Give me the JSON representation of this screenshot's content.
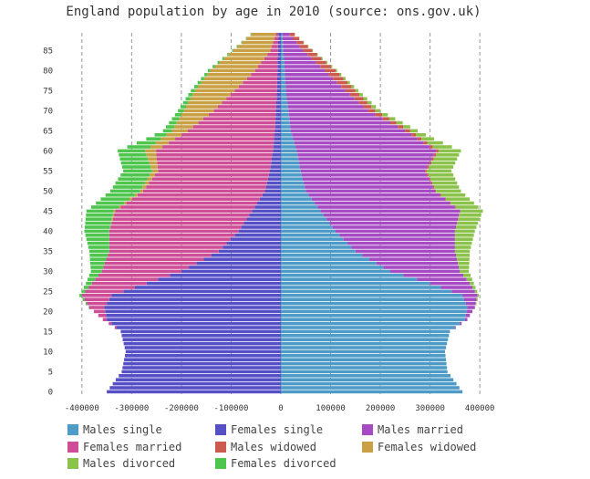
{
  "chart_data": {
    "type": "bar",
    "orientation": "horizontal",
    "stacked": true,
    "title": "England population by age in 2010 (source: ons.gov.uk)",
    "xlim": [
      -440000,
      440000
    ],
    "ylim": [
      0,
      90
    ],
    "x_ticks": [
      -400000,
      -300000,
      -200000,
      -100000,
      0,
      100000,
      200000,
      300000,
      400000
    ],
    "x_tick_labels": [
      "-400000",
      "-300000",
      "-200000",
      "-100000",
      "0",
      "100000",
      "200000",
      "300000",
      "400000"
    ],
    "y_ticks": [
      0,
      5,
      10,
      15,
      20,
      25,
      30,
      35,
      40,
      45,
      50,
      55,
      60,
      65,
      70,
      75,
      80,
      85
    ],
    "y_tick_labels": [
      "0",
      "5",
      "10",
      "15",
      "20",
      "25",
      "30",
      "35",
      "40",
      "45",
      "50",
      "55",
      "60",
      "65",
      "70",
      "75",
      "80",
      "85"
    ],
    "grid_x": true,
    "grid_y": false,
    "legend_position": "bottom",
    "series": [
      {
        "name": "Males single",
        "side": "right",
        "color": "#4e9bc7",
        "anchors": [
          [
            0,
            365000
          ],
          [
            5,
            335000
          ],
          [
            10,
            330000
          ],
          [
            15,
            340000
          ],
          [
            18,
            370000
          ],
          [
            21,
            375000
          ],
          [
            24,
            365000
          ],
          [
            27,
            300000
          ],
          [
            30,
            220000
          ],
          [
            35,
            150000
          ],
          [
            40,
            110000
          ],
          [
            45,
            80000
          ],
          [
            50,
            50000
          ],
          [
            55,
            40000
          ],
          [
            60,
            32000
          ],
          [
            65,
            20000
          ],
          [
            70,
            15000
          ],
          [
            75,
            10000
          ],
          [
            80,
            8000
          ],
          [
            85,
            5000
          ],
          [
            89,
            3000
          ]
        ]
      },
      {
        "name": "Females single",
        "side": "left",
        "color": "#5650c6",
        "anchors": [
          [
            0,
            350000
          ],
          [
            5,
            320000
          ],
          [
            10,
            312000
          ],
          [
            15,
            322000
          ],
          [
            18,
            350000
          ],
          [
            21,
            355000
          ],
          [
            24,
            340000
          ],
          [
            27,
            270000
          ],
          [
            30,
            200000
          ],
          [
            35,
            125000
          ],
          [
            40,
            85000
          ],
          [
            45,
            58000
          ],
          [
            50,
            32000
          ],
          [
            55,
            22000
          ],
          [
            60,
            16000
          ],
          [
            65,
            12000
          ],
          [
            70,
            10000
          ],
          [
            75,
            8000
          ],
          [
            80,
            7000
          ],
          [
            85,
            6000
          ],
          [
            89,
            5000
          ]
        ]
      },
      {
        "name": "Males married",
        "side": "right",
        "color": "#a64bc4",
        "anchors": [
          [
            0,
            0
          ],
          [
            15,
            0
          ],
          [
            18,
            5000
          ],
          [
            21,
            15000
          ],
          [
            24,
            30000
          ],
          [
            27,
            80000
          ],
          [
            30,
            140000
          ],
          [
            35,
            200000
          ],
          [
            40,
            240000
          ],
          [
            45,
            280000
          ],
          [
            50,
            260000
          ],
          [
            55,
            250000
          ],
          [
            60,
            280000
          ],
          [
            65,
            230000
          ],
          [
            70,
            160000
          ],
          [
            75,
            120000
          ],
          [
            80,
            80000
          ],
          [
            85,
            40000
          ],
          [
            89,
            15000
          ]
        ]
      },
      {
        "name": "Females married",
        "side": "left",
        "color": "#cf4c97",
        "anchors": [
          [
            0,
            0
          ],
          [
            15,
            0
          ],
          [
            18,
            8000
          ],
          [
            21,
            30000
          ],
          [
            24,
            60000
          ],
          [
            27,
            110000
          ],
          [
            30,
            160000
          ],
          [
            35,
            220000
          ],
          [
            40,
            260000
          ],
          [
            45,
            275000
          ],
          [
            50,
            245000
          ],
          [
            55,
            225000
          ],
          [
            60,
            235000
          ],
          [
            65,
            175000
          ],
          [
            70,
            125000
          ],
          [
            75,
            85000
          ],
          [
            80,
            45000
          ],
          [
            85,
            15000
          ],
          [
            89,
            5000
          ]
        ]
      },
      {
        "name": "Males widowed",
        "side": "right",
        "color": "#cc5a4e",
        "anchors": [
          [
            0,
            0
          ],
          [
            40,
            0
          ],
          [
            45,
            1000
          ],
          [
            50,
            2000
          ],
          [
            55,
            3000
          ],
          [
            60,
            5000
          ],
          [
            65,
            10000
          ],
          [
            70,
            15000
          ],
          [
            75,
            20000
          ],
          [
            80,
            22000
          ],
          [
            85,
            18000
          ],
          [
            89,
            10000
          ]
        ]
      },
      {
        "name": "Females widowed",
        "side": "left",
        "color": "#c9a044",
        "anchors": [
          [
            0,
            0
          ],
          [
            40,
            0
          ],
          [
            45,
            3000
          ],
          [
            50,
            6000
          ],
          [
            55,
            12000
          ],
          [
            60,
            22000
          ],
          [
            65,
            32000
          ],
          [
            70,
            60000
          ],
          [
            75,
            80000
          ],
          [
            80,
            90000
          ],
          [
            85,
            75000
          ],
          [
            89,
            50000
          ]
        ]
      },
      {
        "name": "Males divorced",
        "side": "right",
        "color": "#8bc34a",
        "anchors": [
          [
            0,
            0
          ],
          [
            20,
            0
          ],
          [
            24,
            3000
          ],
          [
            27,
            8000
          ],
          [
            30,
            18000
          ],
          [
            35,
            30000
          ],
          [
            40,
            40000
          ],
          [
            45,
            45000
          ],
          [
            50,
            50000
          ],
          [
            55,
            50000
          ],
          [
            60,
            45000
          ],
          [
            63,
            25000
          ],
          [
            65,
            15000
          ],
          [
            70,
            10000
          ],
          [
            75,
            6000
          ],
          [
            80,
            3000
          ],
          [
            85,
            1500
          ],
          [
            89,
            500
          ]
        ]
      },
      {
        "name": "Females divorced",
        "side": "left",
        "color": "#4ec64e",
        "anchors": [
          [
            0,
            0
          ],
          [
            20,
            0
          ],
          [
            24,
            5000
          ],
          [
            27,
            12000
          ],
          [
            30,
            22000
          ],
          [
            35,
            40000
          ],
          [
            40,
            50000
          ],
          [
            45,
            55000
          ],
          [
            50,
            60000
          ],
          [
            55,
            58000
          ],
          [
            60,
            55000
          ],
          [
            63,
            30000
          ],
          [
            65,
            18000
          ],
          [
            70,
            12000
          ],
          [
            75,
            8000
          ],
          [
            80,
            5000
          ],
          [
            85,
            2000
          ],
          [
            89,
            1000
          ]
        ]
      }
    ]
  }
}
